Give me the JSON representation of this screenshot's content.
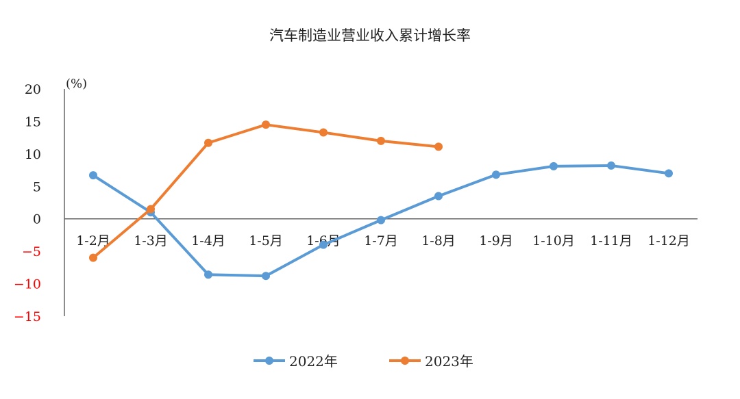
{
  "chart_data": {
    "type": "line",
    "title": "汽车制造业营业收入累计增长率",
    "ylabel": "(%)",
    "xlabel": "",
    "categories": [
      "1-2月",
      "1-3月",
      "1-4月",
      "1-5月",
      "1-6月",
      "1-7月",
      "1-8月",
      "1-9月",
      "1-10月",
      "1-11月",
      "1-12月"
    ],
    "ylim": [
      -15,
      20
    ],
    "yticks": [
      20,
      15,
      10,
      5,
      0,
      -5,
      -10,
      -15
    ],
    "negative_tick_color": "#ff0000",
    "grid": false,
    "legend_position": "bottom",
    "series": [
      {
        "name": "2022年",
        "color": "#5b9bd5",
        "values": [
          6.7,
          1.0,
          -8.6,
          -8.8,
          -4.0,
          -0.2,
          3.5,
          6.8,
          8.1,
          8.2,
          7.0
        ]
      },
      {
        "name": "2023年",
        "color": "#ed7d31",
        "values": [
          -6.0,
          1.5,
          11.7,
          14.5,
          13.3,
          12.0,
          11.1,
          null,
          null,
          null,
          null
        ]
      }
    ]
  }
}
